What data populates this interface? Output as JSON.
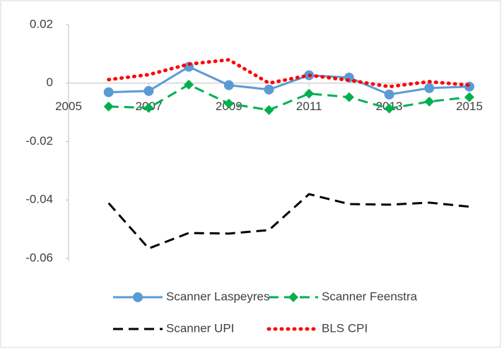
{
  "chart_data": {
    "type": "line",
    "x": [
      2006,
      2007,
      2008,
      2009,
      2010,
      2011,
      2012,
      2013,
      2014,
      2015
    ],
    "xlim": [
      2005,
      2015
    ],
    "xticks": [
      2005,
      2007,
      2009,
      2011,
      2013,
      2015
    ],
    "ylim": [
      -0.06,
      0.02
    ],
    "yticks": [
      -0.06,
      -0.04,
      -0.02,
      0,
      0.02
    ],
    "grid": false,
    "legend": "bottom",
    "series": [
      {
        "name": "Scanner Laspeyres",
        "color": "#5b9bd5",
        "style": "solid",
        "marker": "circle",
        "values": [
          -0.0031,
          -0.0027,
          0.0056,
          -0.0007,
          -0.0022,
          0.0027,
          0.0019,
          -0.0039,
          -0.0017,
          -0.0012
        ]
      },
      {
        "name": "Scanner Feenstra",
        "color": "#00b050",
        "style": "dashed",
        "marker": "diamond",
        "values": [
          -0.008,
          -0.0085,
          -0.0005,
          -0.007,
          -0.0092,
          -0.0036,
          -0.0048,
          -0.0087,
          -0.0063,
          -0.0048
        ]
      },
      {
        "name": "Scanner UPI",
        "color": "#000000",
        "style": "dashed",
        "marker": "none",
        "values": [
          -0.0411,
          -0.0566,
          -0.0513,
          -0.0515,
          -0.0503,
          -0.038,
          -0.0414,
          -0.0416,
          -0.0409,
          -0.0423
        ]
      },
      {
        "name": "BLS CPI",
        "color": "#ff0000",
        "style": "dotted",
        "marker": "none",
        "values": [
          0.0012,
          0.0029,
          0.0065,
          0.008,
          0,
          0.0027,
          0.001,
          -0.0012,
          0.0005,
          -0.0007
        ]
      }
    ]
  }
}
